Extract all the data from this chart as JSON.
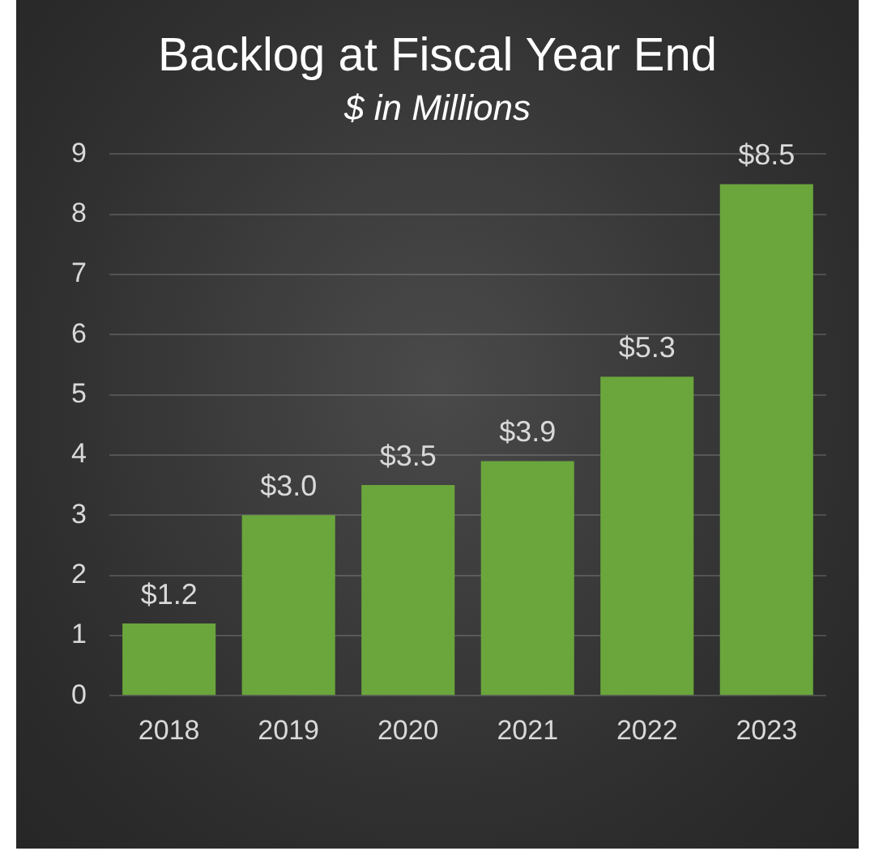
{
  "chart_data": {
    "type": "bar",
    "title": "Backlog at Fiscal Year End",
    "subtitle": "$ in Millions",
    "categories": [
      "2018",
      "2019",
      "2020",
      "2021",
      "2022",
      "2023"
    ],
    "values": [
      1.2,
      3.0,
      3.5,
      3.9,
      5.3,
      8.5
    ],
    "value_labels": [
      "$1.2",
      "$3.0",
      "$3.5",
      "$3.9",
      "$5.3",
      "$8.5"
    ],
    "color": "#6aa63c",
    "ylim": [
      0,
      9
    ],
    "yticks": [
      0,
      1,
      2,
      3,
      4,
      5,
      6,
      7,
      8,
      9
    ],
    "grid": "y",
    "legend": false
  }
}
